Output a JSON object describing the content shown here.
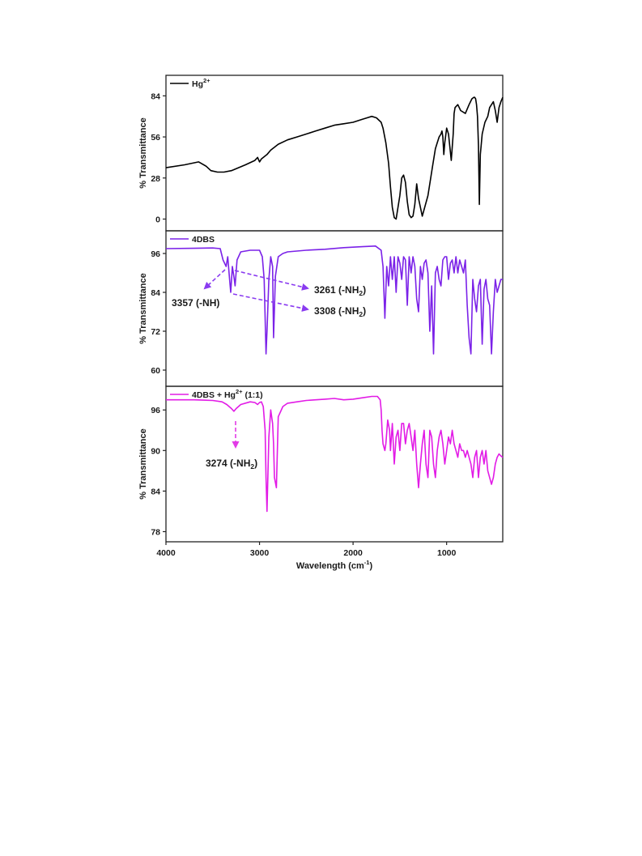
{
  "chart_data": {
    "type": "line",
    "xlabel": "Wavelength (cm",
    "xlabel_sup": "-1",
    "xlabel_end": ")",
    "xlim": [
      4000,
      400
    ],
    "xticks": [
      4000,
      3000,
      2000,
      1000
    ],
    "panels": [
      {
        "legend": "Hg",
        "legend_sup": "2+",
        "legend_tail": "",
        "color": "#000000",
        "ylabel": "% Transmittance",
        "ylim": [
          -8,
          98
        ],
        "yticks": [
          0,
          28,
          56,
          84
        ],
        "x": [
          4000,
          3800,
          3650,
          3570,
          3520,
          3450,
          3380,
          3300,
          3150,
          3050,
          3020,
          3000,
          2980,
          2920,
          2880,
          2800,
          2700,
          2600,
          2500,
          2400,
          2300,
          2200,
          2100,
          2000,
          1900,
          1850,
          1800,
          1750,
          1700,
          1680,
          1650,
          1620,
          1600,
          1580,
          1560,
          1540,
          1500,
          1480,
          1460,
          1440,
          1420,
          1400,
          1380,
          1360,
          1340,
          1320,
          1300,
          1260,
          1200,
          1150,
          1120,
          1100,
          1080,
          1060,
          1050,
          1040,
          1030,
          1020,
          1000,
          980,
          950,
          930,
          920,
          910,
          880,
          850,
          800,
          760,
          730,
          710,
          700,
          690,
          680,
          670,
          660,
          650,
          640,
          620,
          590,
          560,
          540,
          520,
          500,
          480,
          460,
          440,
          420,
          400
        ],
        "y": [
          35,
          37,
          39,
          36,
          33,
          32,
          32,
          33,
          37,
          40,
          42,
          39,
          41,
          44,
          47,
          51,
          54,
          56,
          58,
          60,
          62,
          64,
          65,
          66,
          68,
          69,
          70,
          69,
          66,
          62,
          52,
          38,
          22,
          8,
          1,
          0,
          16,
          28,
          30,
          25,
          12,
          3,
          1,
          2,
          10,
          24,
          14,
          2,
          16,
          36,
          48,
          52,
          56,
          58,
          60,
          56,
          44,
          52,
          62,
          58,
          40,
          58,
          72,
          76,
          78,
          74,
          72,
          78,
          82,
          83,
          83,
          82,
          78,
          70,
          50,
          10,
          44,
          58,
          66,
          70,
          76,
          78,
          80,
          74,
          66,
          76,
          80,
          83
        ]
      },
      {
        "legend": "4DBS",
        "legend_sup": "",
        "legend_tail": "",
        "color": "#7B22E8",
        "ylabel": "% Transmittance",
        "ylim": [
          55,
          103
        ],
        "yticks": [
          60,
          72,
          84,
          96
        ],
        "x": [
          4000,
          3700,
          3500,
          3420,
          3390,
          3357,
          3340,
          3320,
          3308,
          3290,
          3270,
          3261,
          3240,
          3200,
          3100,
          3000,
          2970,
          2950,
          2930,
          2920,
          2900,
          2880,
          2860,
          2850,
          2830,
          2800,
          2750,
          2700,
          2500,
          2300,
          2100,
          1900,
          1760,
          1700,
          1680,
          1660,
          1640,
          1620,
          1600,
          1580,
          1560,
          1540,
          1520,
          1500,
          1480,
          1460,
          1440,
          1420,
          1400,
          1380,
          1360,
          1340,
          1320,
          1300,
          1280,
          1260,
          1240,
          1220,
          1200,
          1180,
          1160,
          1140,
          1120,
          1100,
          1080,
          1060,
          1040,
          1020,
          1000,
          980,
          960,
          940,
          920,
          900,
          880,
          860,
          840,
          820,
          800,
          780,
          760,
          740,
          720,
          700,
          680,
          660,
          640,
          620,
          600,
          580,
          560,
          540,
          520,
          500,
          480,
          460,
          440,
          420,
          400
        ],
        "y": [
          97.5,
          97.6,
          97.7,
          97.5,
          94,
          92,
          95,
          88,
          84,
          92,
          88,
          86,
          94,
          96.5,
          97,
          97,
          95,
          88,
          65,
          72,
          88,
          95,
          92,
          70,
          89,
          95,
          96,
          96.5,
          97,
          97.3,
          97.8,
          98.1,
          98.3,
          97,
          92,
          76,
          92,
          86,
          95,
          88,
          95,
          84,
          95,
          93,
          88,
          95,
          94,
          80,
          95,
          90,
          95,
          92,
          82,
          78,
          92,
          88,
          93,
          94,
          90,
          72,
          86,
          65,
          90,
          92,
          88,
          86,
          94,
          95,
          95,
          88,
          93,
          94,
          90,
          95,
          90,
          94,
          92,
          90,
          94,
          80,
          70,
          65,
          88,
          82,
          78,
          86,
          88,
          68,
          85,
          88,
          82,
          80,
          65,
          78,
          88,
          84,
          86,
          88,
          88
        ]
      },
      {
        "legend": "4DBS + Hg",
        "legend_sup": "2+",
        "legend_tail": " (1:1)",
        "color": "#E21BE6",
        "ylabel": "% Transmittance",
        "ylim": [
          76.5,
          99.5
        ],
        "yticks": [
          78,
          84,
          90,
          96
        ],
        "x": [
          4000,
          3700,
          3500,
          3400,
          3350,
          3300,
          3274,
          3250,
          3200,
          3100,
          3050,
          3020,
          3000,
          2980,
          2960,
          2940,
          2930,
          2920,
          2900,
          2880,
          2860,
          2850,
          2840,
          2820,
          2800,
          2750,
          2700,
          2600,
          2500,
          2400,
          2300,
          2200,
          2100,
          2000,
          1900,
          1800,
          1740,
          1710,
          1700,
          1690,
          1680,
          1670,
          1660,
          1650,
          1630,
          1610,
          1600,
          1580,
          1560,
          1540,
          1520,
          1500,
          1480,
          1460,
          1440,
          1420,
          1400,
          1380,
          1360,
          1340,
          1320,
          1300,
          1280,
          1260,
          1240,
          1220,
          1200,
          1180,
          1160,
          1140,
          1120,
          1100,
          1080,
          1060,
          1040,
          1020,
          1000,
          980,
          960,
          940,
          920,
          900,
          880,
          860,
          840,
          820,
          800,
          780,
          760,
          740,
          720,
          700,
          680,
          660,
          640,
          620,
          600,
          580,
          560,
          540,
          520,
          500,
          480,
          460,
          440,
          420,
          400
        ],
        "y": [
          97.5,
          97.5,
          97.4,
          97.2,
          96.8,
          96.2,
          95.8,
          96.2,
          96.8,
          97.2,
          97.1,
          96.8,
          97.1,
          97.2,
          96.5,
          93,
          86,
          81,
          92,
          96,
          94,
          91,
          86,
          84.5,
          95,
          96.5,
          97,
          97.2,
          97.4,
          97.5,
          97.6,
          97.7,
          97.5,
          97.6,
          97.8,
          98,
          98,
          97.5,
          96,
          93,
          91,
          90.5,
          90,
          91,
          94.5,
          93,
          90,
          94,
          88,
          92,
          93,
          90,
          94,
          94,
          91,
          93,
          94,
          92,
          90,
          93,
          88,
          84.5,
          88,
          91,
          93,
          88,
          86,
          93,
          92,
          88,
          86,
          90,
          92,
          93,
          91,
          88,
          90,
          92,
          91,
          93,
          91,
          90,
          89,
          91,
          90,
          90,
          89,
          90,
          89,
          88,
          86,
          89,
          90,
          86,
          89,
          90,
          88,
          90,
          87,
          86,
          85,
          86,
          88,
          89,
          89.5,
          89.2,
          89
        ]
      }
    ],
    "annotations": [
      {
        "panel": 1,
        "label": "3357 (-NH)",
        "sub": "",
        "label_end": "",
        "tail_x": 3357,
        "tail_y": 92
      },
      {
        "panel": 1,
        "label": "3261 (-NH",
        "sub": "2",
        "label_end": ")",
        "tail_x": 3261,
        "tail_y": 92
      },
      {
        "panel": 1,
        "label": "3308 (-NH",
        "sub": "2",
        "label_end": ")",
        "tail_x": 3308,
        "tail_y": 88
      },
      {
        "panel": 2,
        "label": "3274 (-NH",
        "sub": "2",
        "label_end": ")",
        "tail_x": 3274,
        "tail_y": 95.5
      }
    ]
  }
}
